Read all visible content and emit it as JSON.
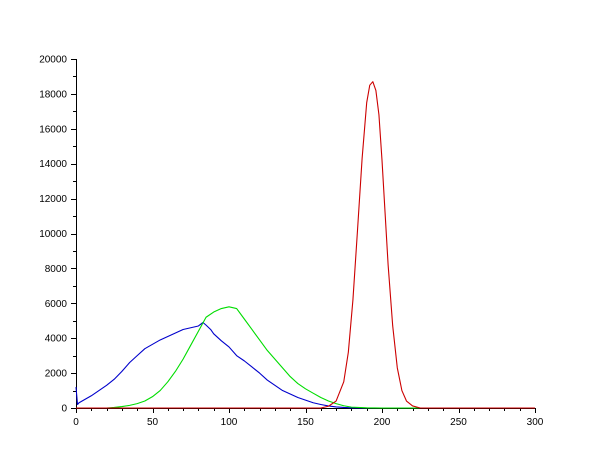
{
  "chart_data": {
    "type": "line",
    "title": "",
    "xlabel": "",
    "ylabel": "",
    "xlim": [
      0,
      300
    ],
    "ylim": [
      0,
      20000
    ],
    "grid": false,
    "legend": "none",
    "x_ticks": [
      0,
      50,
      100,
      150,
      200,
      250,
      300
    ],
    "x_tick_labels": [
      "0",
      "50",
      "100",
      "150",
      "200",
      "250",
      "300"
    ],
    "y_ticks": [
      0,
      2000,
      4000,
      6000,
      8000,
      10000,
      12000,
      14000,
      16000,
      18000,
      20000
    ],
    "y_tick_labels": [
      "0",
      "2000",
      "4000",
      "6000",
      "8000",
      "10000",
      "12000",
      "14000",
      "16000",
      "18000",
      "20000"
    ],
    "series": [
      {
        "color": "#0000cc",
        "x": [
          0,
          1,
          2,
          5,
          10,
          15,
          20,
          25,
          30,
          35,
          40,
          45,
          50,
          55,
          60,
          65,
          70,
          75,
          80,
          83,
          85,
          88,
          90,
          95,
          100,
          105,
          110,
          115,
          120,
          125,
          130,
          135,
          140,
          145,
          150,
          155,
          160,
          165,
          170,
          175,
          180,
          190,
          200,
          220,
          250,
          300
        ],
        "y": [
          1200,
          200,
          300,
          450,
          700,
          1000,
          1300,
          1650,
          2100,
          2600,
          3000,
          3400,
          3650,
          3900,
          4100,
          4300,
          4500,
          4600,
          4700,
          4900,
          4750,
          4500,
          4250,
          3850,
          3500,
          3000,
          2700,
          2350,
          2000,
          1600,
          1300,
          1000,
          800,
          600,
          450,
          300,
          200,
          120,
          60,
          30,
          10,
          0,
          0,
          0,
          0,
          0
        ]
      },
      {
        "color": "#00dd00",
        "x": [
          0,
          20,
          25,
          30,
          35,
          40,
          45,
          50,
          55,
          60,
          65,
          70,
          75,
          80,
          85,
          90,
          95,
          100,
          105,
          110,
          115,
          120,
          125,
          130,
          135,
          140,
          145,
          150,
          155,
          160,
          165,
          170,
          175,
          180,
          190,
          200,
          220,
          250,
          300
        ],
        "y": [
          0,
          0,
          30,
          80,
          150,
          250,
          400,
          650,
          1000,
          1500,
          2100,
          2800,
          3600,
          4400,
          5200,
          5500,
          5700,
          5800,
          5700,
          5100,
          4500,
          3900,
          3300,
          2800,
          2300,
          1800,
          1400,
          1100,
          850,
          600,
          400,
          250,
          130,
          50,
          10,
          0,
          0,
          0,
          0
        ]
      },
      {
        "color": "#cc0000",
        "x": [
          0,
          160,
          165,
          170,
          175,
          178,
          181,
          184,
          187,
          190,
          192,
          194,
          196,
          198,
          200,
          202,
          204,
          207,
          210,
          213,
          216,
          220,
          225,
          250,
          300
        ],
        "y": [
          0,
          0,
          100,
          400,
          1500,
          3200,
          6200,
          10200,
          14300,
          17500,
          18500,
          18700,
          18200,
          16800,
          14200,
          11200,
          8200,
          4700,
          2300,
          1000,
          400,
          120,
          0,
          0,
          0
        ]
      }
    ]
  }
}
